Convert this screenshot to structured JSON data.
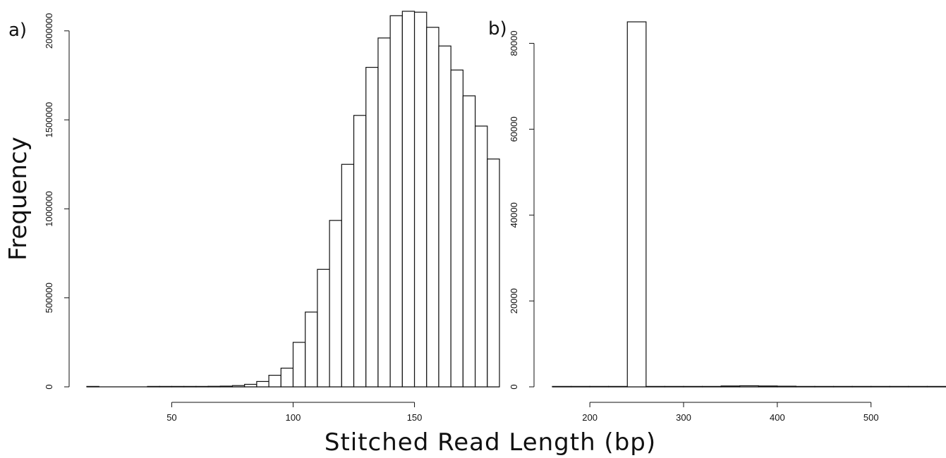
{
  "figure": {
    "ylabel": "Frequency",
    "xlabel": "Stitched Read Length (bp)"
  },
  "chart_data": [
    {
      "type": "bar",
      "panel_label": "a)",
      "bin_width": 5,
      "x": [
        17.5,
        42.5,
        47.5,
        52.5,
        57.5,
        62.5,
        67.5,
        72.5,
        77.5,
        82.5,
        87.5,
        92.5,
        97.5,
        102.5,
        107.5,
        112.5,
        117.5,
        122.5,
        127.5,
        132.5,
        137.5,
        142.5,
        147.5,
        152.5,
        157.5,
        162.5,
        167.5,
        172.5,
        177.5,
        182.5
      ],
      "values": [
        1000,
        1000,
        1000,
        1000,
        1000,
        2000,
        3000,
        4000,
        7000,
        14000,
        30000,
        65000,
        105000,
        250000,
        420000,
        660000,
        935000,
        1250000,
        1525000,
        1795000,
        1960000,
        2085000,
        2110000,
        2105000,
        2020000,
        1915000,
        1780000,
        1635000,
        1465000,
        1280000
      ],
      "x_ticks": [
        50,
        100,
        150
      ],
      "y_ticks": [
        0,
        500000,
        1000000,
        1500000,
        2000000
      ],
      "y_tick_labels": [
        "0",
        "500000",
        "1000000",
        "1500000",
        "2000000"
      ],
      "x_range": [
        15,
        185
      ],
      "y_range": [
        0,
        2110000
      ]
    },
    {
      "type": "bar",
      "panel_label": "b)",
      "bin_width": 20,
      "x": [
        170,
        190,
        210,
        230,
        250,
        270,
        290,
        310,
        330,
        350,
        370,
        390,
        410,
        430,
        450,
        470,
        490,
        510,
        530,
        550,
        570
      ],
      "values": [
        0,
        0,
        0,
        0,
        85000,
        0,
        0,
        50,
        100,
        200,
        250,
        200,
        150,
        100,
        80,
        50,
        0,
        0,
        0,
        0,
        0
      ],
      "x_ticks": [
        200,
        300,
        400,
        500
      ],
      "y_ticks": [
        0,
        20000,
        40000,
        60000,
        80000
      ],
      "y_tick_labels": [
        "0",
        "20000",
        "40000",
        "60000",
        "80000"
      ],
      "x_range": [
        160,
        580
      ],
      "y_range": [
        0,
        85000
      ]
    }
  ]
}
